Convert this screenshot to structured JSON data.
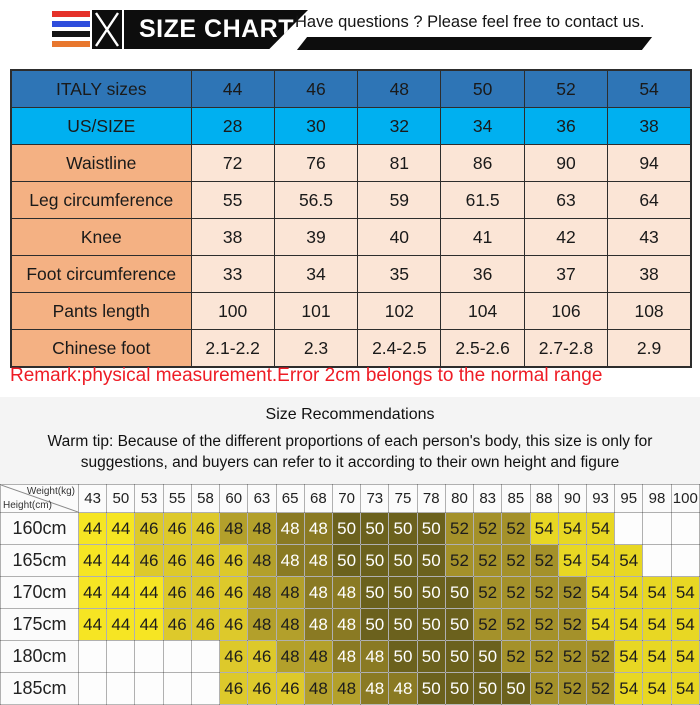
{
  "header": {
    "brand": "SIZE CHART",
    "contact": "Have questions ? Please feel free to contact us.",
    "stripe_colors": [
      "#e5322a",
      "#2f4ddc",
      "#141414",
      "#e8772e"
    ]
  },
  "size_table": {
    "rows": [
      {
        "label": "ITALY sizes",
        "style": "italy",
        "values": [
          "44",
          "46",
          "48",
          "50",
          "52",
          "54"
        ]
      },
      {
        "label": "US/SIZE",
        "style": "us",
        "values": [
          "28",
          "30",
          "32",
          "34",
          "36",
          "38"
        ]
      },
      {
        "label": "Waistline",
        "style": "measure",
        "values": [
          "72",
          "76",
          "81",
          "86",
          "90",
          "94"
        ]
      },
      {
        "label": "Leg circumference",
        "style": "measure",
        "values": [
          "55",
          "56.5",
          "59",
          "61.5",
          "63",
          "64"
        ]
      },
      {
        "label": "Knee",
        "style": "measure",
        "values": [
          "38",
          "39",
          "40",
          "41",
          "42",
          "43"
        ]
      },
      {
        "label": "Foot circumference",
        "style": "measure",
        "values": [
          "33",
          "34",
          "35",
          "36",
          "37",
          "38"
        ]
      },
      {
        "label": "Pants length",
        "style": "measure",
        "values": [
          "100",
          "101",
          "102",
          "104",
          "106",
          "108"
        ]
      },
      {
        "label": "Chinese foot",
        "style": "measure",
        "values": [
          "2.1-2.2",
          "2.3",
          "2.4-2.5",
          "2.5-2.6",
          "2.7-2.8",
          "2.9"
        ]
      }
    ]
  },
  "remark": "Remark:physical measurement.Error 2cm belongs to the normal range",
  "recommendations": {
    "title": "Size Recommendations",
    "warm_tip": "Warm tip: Because of the different proportions of each person's body, this size is only for suggestions, and buyers can refer to it according to their own height and figure",
    "weight_label": "Weight(kg)",
    "height_label": "Height(cm)",
    "weights": [
      "43",
      "50",
      "53",
      "55",
      "58",
      "60",
      "63",
      "65",
      "68",
      "70",
      "73",
      "75",
      "78",
      "80",
      "83",
      "85",
      "88",
      "90",
      "93",
      "95",
      "98",
      "100"
    ],
    "rows": [
      {
        "height": "160cm",
        "cells": [
          "44",
          "44",
          "46",
          "46",
          "46",
          "48",
          "48",
          "48",
          "48",
          "50",
          "50",
          "50",
          "50",
          "52",
          "52",
          "52",
          "54",
          "54",
          "54",
          "",
          "",
          ""
        ],
        "light": [
          7,
          8,
          9,
          10,
          11,
          12
        ]
      },
      {
        "height": "165cm",
        "cells": [
          "44",
          "44",
          "46",
          "46",
          "46",
          "46",
          "48",
          "48",
          "48",
          "50",
          "50",
          "50",
          "50",
          "52",
          "52",
          "52",
          "52",
          "54",
          "54",
          "54",
          "",
          ""
        ],
        "light": [
          7,
          8,
          9,
          10,
          11,
          12
        ]
      },
      {
        "height": "170cm",
        "cells": [
          "44",
          "44",
          "44",
          "46",
          "46",
          "46",
          "48",
          "48",
          "48",
          "48",
          "50",
          "50",
          "50",
          "50",
          "52",
          "52",
          "52",
          "52",
          "54",
          "54",
          "54",
          "54"
        ],
        "light": [
          8,
          9,
          10,
          11,
          12,
          13
        ]
      },
      {
        "height": "175cm",
        "cells": [
          "44",
          "44",
          "44",
          "46",
          "46",
          "46",
          "48",
          "48",
          "48",
          "48",
          "50",
          "50",
          "50",
          "50",
          "52",
          "52",
          "52",
          "52",
          "54",
          "54",
          "54",
          "54"
        ],
        "light": [
          8,
          9,
          10,
          11,
          12,
          13
        ]
      },
      {
        "height": "180cm",
        "cells": [
          "",
          "",
          "",
          "",
          "",
          "46",
          "46",
          "48",
          "48",
          "48",
          "48",
          "50",
          "50",
          "50",
          "50",
          "52",
          "52",
          "52",
          "52",
          "54",
          "54",
          "54"
        ],
        "light": [
          9,
          10,
          11,
          12,
          13,
          14
        ]
      },
      {
        "height": "185cm",
        "cells": [
          "",
          "",
          "",
          "",
          "",
          "46",
          "46",
          "46",
          "48",
          "48",
          "48",
          "48",
          "50",
          "50",
          "50",
          "50",
          "52",
          "52",
          "52",
          "54",
          "54",
          "54"
        ],
        "light": [
          10,
          11,
          12,
          13,
          14,
          15
        ]
      }
    ]
  },
  "colors": {
    "remark": "#ee1c25",
    "size_table": {
      "italy": "#2e75b6",
      "us": "#00b0f0",
      "label": "#f4b183",
      "value": "#fbe5d6"
    },
    "matrix": {
      "44": "#f6e523",
      "46": "#ddc92b",
      "48": "#b3a02b",
      "50": "#6b611d",
      "52": "#a4912a",
      "54": "#e8d723"
    },
    "matrix_dark48": "#8a7a23",
    "matrix_empty": "#fdfdfd",
    "matrix_text_dark": "#1c1c1c",
    "matrix_text_light": "#ffffff"
  }
}
